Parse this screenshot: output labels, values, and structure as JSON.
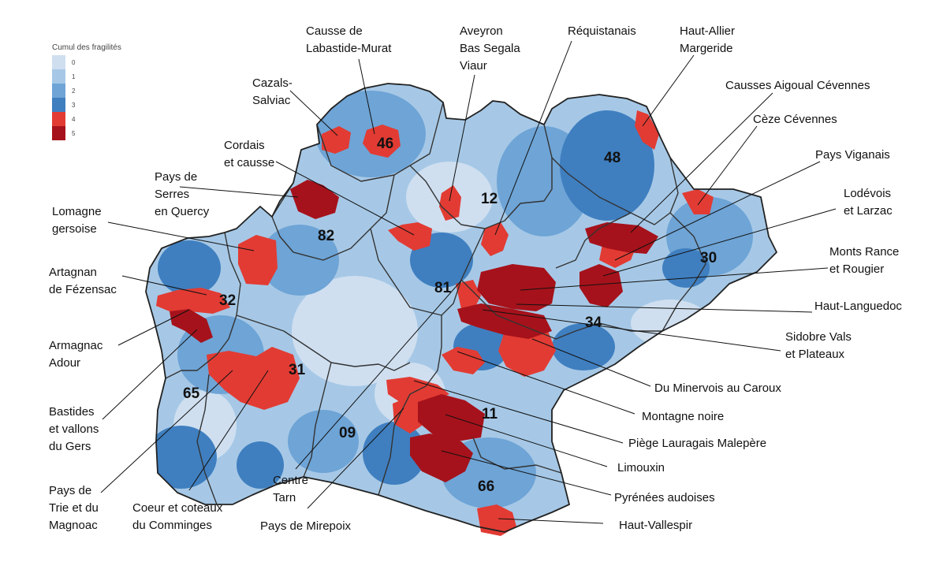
{
  "legend": {
    "title": "Cumul des fragilités",
    "levels": [
      {
        "label": "0",
        "color": "#cfdff0"
      },
      {
        "label": "1",
        "color": "#a6c8e6"
      },
      {
        "label": "2",
        "color": "#6ea4d6"
      },
      {
        "label": "3",
        "color": "#3f7fc0"
      },
      {
        "label": "4",
        "color": "#e23b33"
      },
      {
        "label": "5",
        "color": "#a6121b"
      }
    ]
  },
  "departments": [
    "46",
    "12",
    "48",
    "82",
    "30",
    "81",
    "32",
    "34",
    "31",
    "65",
    "11",
    "09",
    "66"
  ],
  "territories": [
    {
      "name": "Causse de Labastide-Murat",
      "lines": [
        "Causse de",
        "Labastide-Murat"
      ],
      "level": 4
    },
    {
      "name": "Aveyron Bas Segala Viaur",
      "lines": [
        "Aveyron",
        "Bas Segala",
        "Viaur"
      ],
      "level": 4
    },
    {
      "name": "Réquistanais",
      "lines": [
        "Réquistanais"
      ],
      "level": 4
    },
    {
      "name": "Haut-Allier Margeride",
      "lines": [
        "Haut-Allier",
        "Margeride"
      ],
      "level": 4
    },
    {
      "name": "Cazals-Salviac",
      "lines": [
        "Cazals-",
        "Salviac"
      ],
      "level": 4
    },
    {
      "name": "Causses Aigoual Cévennes",
      "lines": [
        "Causses Aigoual Cévennes"
      ],
      "level": 5
    },
    {
      "name": "Cèze Cévennes",
      "lines": [
        "Cèze Cévennes"
      ],
      "level": 4
    },
    {
      "name": "Cordais et causse",
      "lines": [
        "Cordais",
        "et causse"
      ],
      "level": 4
    },
    {
      "name": "Pays Viganais",
      "lines": [
        "Pays Viganais"
      ],
      "level": 4
    },
    {
      "name": "Pays de Serres en Quercy",
      "lines": [
        "Pays de",
        "Serres",
        "en Quercy"
      ],
      "level": 5
    },
    {
      "name": "Lodévois et Larzac",
      "lines": [
        "Lodévois",
        "et Larzac"
      ],
      "level": 5
    },
    {
      "name": "Lomagne gersoise",
      "lines": [
        "Lomagne",
        "gersoise"
      ],
      "level": 4
    },
    {
      "name": "Monts Rance et Rougier",
      "lines": [
        "Monts Rance",
        "et Rougier"
      ],
      "level": 5
    },
    {
      "name": "Artagnan de Fézensac",
      "lines": [
        "Artagnan",
        "de Fézensac"
      ],
      "level": 4
    },
    {
      "name": "Haut-Languedoc",
      "lines": [
        "Haut-Languedoc"
      ],
      "level": 5
    },
    {
      "name": "Sidobre Vals et Plateaux",
      "lines": [
        "Sidobre Vals",
        "et Plateaux"
      ],
      "level": 5
    },
    {
      "name": "Armagnac Adour",
      "lines": [
        "Armagnac",
        "Adour"
      ],
      "level": 5
    },
    {
      "name": "Du Minervois au Caroux",
      "lines": [
        "Du Minervois au Caroux"
      ],
      "level": 4
    },
    {
      "name": "Bastides et vallons du Gers",
      "lines": [
        "Bastides",
        "et vallons",
        "du Gers"
      ],
      "level": 4
    },
    {
      "name": "Montagne noire",
      "lines": [
        "Montagne noire"
      ],
      "level": 4
    },
    {
      "name": "Piège Lauragais Malepère",
      "lines": [
        "Piège Lauragais Malepère"
      ],
      "level": 4
    },
    {
      "name": "Limouxin",
      "lines": [
        "Limouxin"
      ],
      "level": 5
    },
    {
      "name": "Pays de Trie et du Magnoac",
      "lines": [
        "Pays de",
        "Trie et du",
        "Magnoac"
      ],
      "level": 4
    },
    {
      "name": "Pyrénées audoises",
      "lines": [
        "Pyrénées audoises"
      ],
      "level": 5
    },
    {
      "name": "Coeur et coteaux du Comminges",
      "lines": [
        "Coeur et coteaux",
        "du Comminges"
      ],
      "level": 4
    },
    {
      "name": "Centre Tarn",
      "lines": [
        "Centre",
        "Tarn"
      ],
      "level": 4
    },
    {
      "name": "Pays de Mirepoix",
      "lines": [
        "Pays de Mirepoix"
      ],
      "level": 4
    },
    {
      "name": "Haut-Vallespir",
      "lines": [
        "Haut-Vallespir"
      ],
      "level": 4
    }
  ]
}
